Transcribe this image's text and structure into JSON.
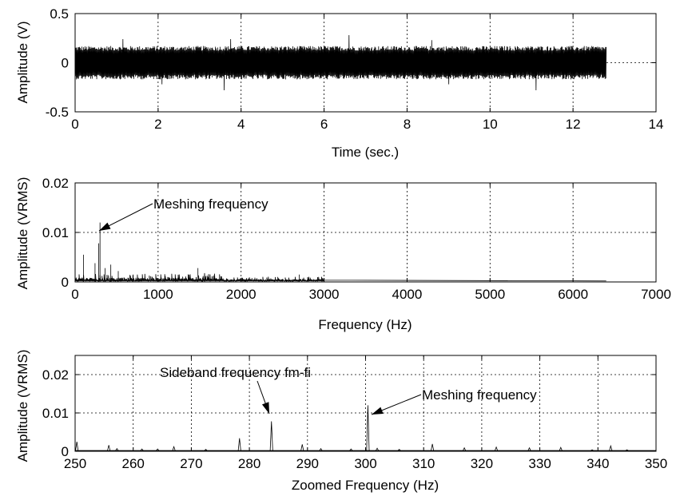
{
  "chart_data": [
    {
      "type": "line",
      "xlabel": "Time (sec.)",
      "ylabel": "Amplitude (V)",
      "xlim": [
        0,
        14
      ],
      "ylim": [
        -0.5,
        0.5
      ],
      "xticks": [
        "0",
        "2",
        "4",
        "6",
        "8",
        "10",
        "12",
        "14"
      ],
      "yticks": [
        "-0.5",
        "0",
        "0.5"
      ],
      "grid": true,
      "series": [
        {
          "signal_time_range": [
            0,
            12.8
          ],
          "typical_amplitude": 0.17,
          "peak_excursions": [
            {
              "x": 1.15,
              "y": 0.24
            },
            {
              "x": 2.1,
              "y": -0.22
            },
            {
              "x": 3.6,
              "y": -0.28
            },
            {
              "x": 3.75,
              "y": 0.24
            },
            {
              "x": 6.6,
              "y": 0.28
            },
            {
              "x": 8.6,
              "y": 0.23
            },
            {
              "x": 9.0,
              "y": -0.22
            },
            {
              "x": 11.1,
              "y": -0.28
            }
          ]
        }
      ]
    },
    {
      "type": "line",
      "xlabel": "Frequency (Hz)",
      "ylabel": "Amplitude (VRMS)",
      "xlim": [
        0,
        7000
      ],
      "ylim": [
        0,
        0.02
      ],
      "xticks": [
        "0",
        "1000",
        "2000",
        "3000",
        "4000",
        "5000",
        "6000",
        "7000"
      ],
      "yticks": [
        "0",
        "0.01",
        "0.02"
      ],
      "grid": true,
      "series": [
        {
          "peaks": [
            {
              "x": 100,
              "y": 0.0055
            },
            {
              "x": 240,
              "y": 0.0038
            },
            {
              "x": 283,
              "y": 0.0078
            },
            {
              "x": 300,
              "y": 0.012
            },
            {
              "x": 360,
              "y": 0.0028
            },
            {
              "x": 430,
              "y": 0.0035
            },
            {
              "x": 520,
              "y": 0.0022
            },
            {
              "x": 700,
              "y": 0.0015
            },
            {
              "x": 1480,
              "y": 0.0028
            },
            {
              "x": 1560,
              "y": 0.0018
            },
            {
              "x": 2700,
              "y": 0.0015
            }
          ],
          "noise_floor_until_hz": 3000,
          "flat_until_hz": 6400
        }
      ],
      "annotations": [
        {
          "text": "Meshing frequency",
          "x": 300,
          "y": 0.012
        }
      ]
    },
    {
      "type": "line",
      "xlabel": "Zoomed Frequency (Hz)",
      "ylabel": "Amplitude (VRMS)",
      "xlim": [
        250,
        350
      ],
      "ylim": [
        0,
        0.025
      ],
      "xticks": [
        "250",
        "260",
        "270",
        "280",
        "290",
        "300",
        "310",
        "320",
        "330",
        "340",
        "350"
      ],
      "yticks": [
        "0",
        "0.01",
        "0.02"
      ],
      "grid": true,
      "series": [
        {
          "peaks": [
            {
              "x": 250.3,
              "y": 0.0025
            },
            {
              "x": 255.8,
              "y": 0.0016
            },
            {
              "x": 257.2,
              "y": 0.0007
            },
            {
              "x": 261.5,
              "y": 0.0006
            },
            {
              "x": 264.2,
              "y": 0.0006
            },
            {
              "x": 267.0,
              "y": 0.0012
            },
            {
              "x": 272.5,
              "y": 0.0005
            },
            {
              "x": 278.3,
              "y": 0.0034
            },
            {
              "x": 283.8,
              "y": 0.0078
            },
            {
              "x": 289.1,
              "y": 0.0018
            },
            {
              "x": 292.3,
              "y": 0.0007
            },
            {
              "x": 297.5,
              "y": 0.0006
            },
            {
              "x": 300.4,
              "y": 0.012
            },
            {
              "x": 302.0,
              "y": 0.0008
            },
            {
              "x": 305.8,
              "y": 0.0005
            },
            {
              "x": 311.5,
              "y": 0.0019
            },
            {
              "x": 317.0,
              "y": 0.0009
            },
            {
              "x": 322.5,
              "y": 0.0011
            },
            {
              "x": 328.2,
              "y": 0.0009
            },
            {
              "x": 333.6,
              "y": 0.001
            },
            {
              "x": 339.0,
              "y": 0.0004
            },
            {
              "x": 342.2,
              "y": 0.0014
            },
            {
              "x": 345.0,
              "y": 0.0004
            }
          ]
        }
      ],
      "annotations": [
        {
          "text": "Sideband frequency fm-fi",
          "x": 283.8,
          "y": 0.0078
        },
        {
          "text": "Meshing frequency",
          "x": 300.4,
          "y": 0.012
        }
      ]
    }
  ]
}
